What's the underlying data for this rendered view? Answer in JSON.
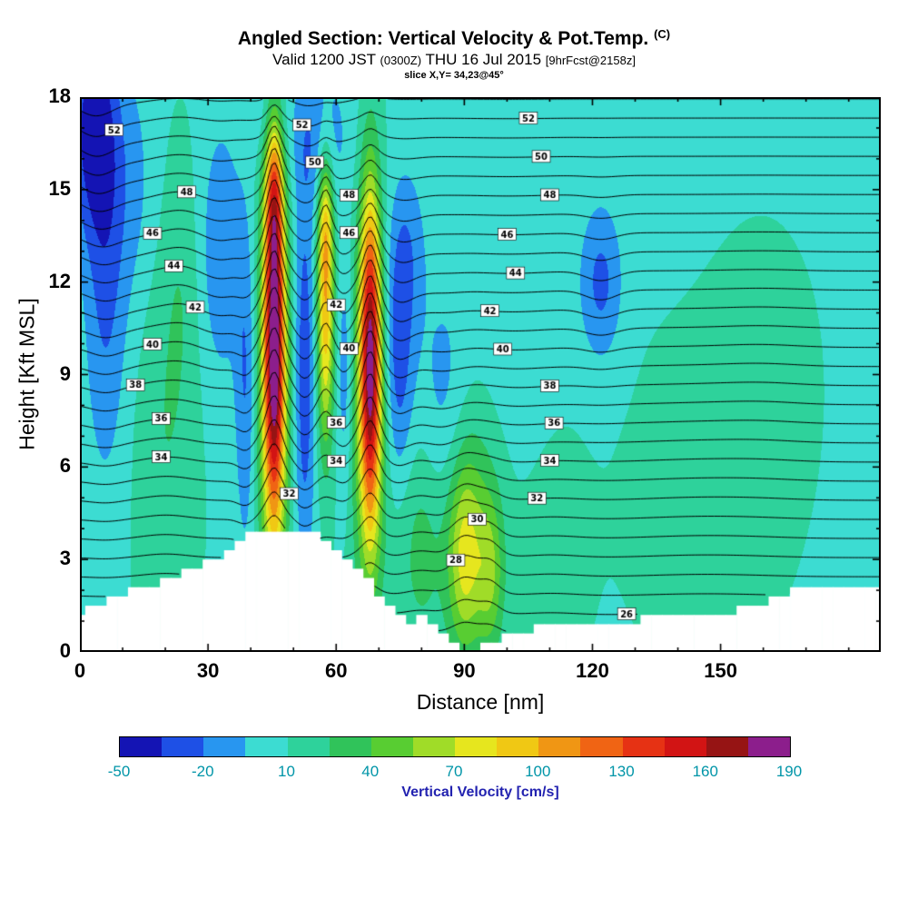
{
  "header": {
    "title": "Angled Section: Vertical Velocity & Pot.Temp.",
    "title_sup": "(C)",
    "valid_a": "Valid 1200 JST",
    "valid_b": "(0300Z)",
    "valid_c": "THU 16 Jul 2015",
    "valid_d": "[9hrFcst@2158z]",
    "slice": "slice X,Y= 34,23@45°"
  },
  "chart_data": {
    "type": "heatmap",
    "title": "Angled Section: Vertical Velocity & Pot.Temp. (C)",
    "xlabel": "Distance [nm]",
    "ylabel": "Height [Kft MSL]",
    "xlim": [
      0,
      187.5
    ],
    "ylim": [
      0,
      18
    ],
    "x_major_ticks": [
      0,
      30,
      60,
      90,
      120,
      150
    ],
    "x_minor_step": 10,
    "y_major_ticks": [
      0,
      3,
      6,
      9,
      12,
      15,
      18
    ],
    "y_minor_step": 1,
    "grid": false,
    "colorbar": {
      "label": "Vertical Velocity [cm/s]",
      "tick_labels": [
        -50,
        -20,
        10,
        40,
        70,
        100,
        130,
        160,
        190
      ],
      "min": -50,
      "step": 15,
      "colors": [
        "#1414b4",
        "#1e50e6",
        "#2896f0",
        "#3cdcd2",
        "#2ed29b",
        "#30c35a",
        "#58cd32",
        "#a0dc28",
        "#e6e61e",
        "#f0c814",
        "#f09614",
        "#f06414",
        "#e63214",
        "#d21414",
        "#961414",
        "#8c1e8c"
      ]
    },
    "field": {
      "units": "cm/s",
      "background": 8,
      "blobs": [
        {
          "x": 3,
          "y": 17,
          "sx": 4,
          "sy": 2.5,
          "amp": -48
        },
        {
          "x": 6,
          "y": 12,
          "sx": 3.5,
          "sy": 4.5,
          "amp": -30
        },
        {
          "x": 13,
          "y": 15,
          "sx": 4,
          "sy": 3,
          "amp": -16
        },
        {
          "x": 20,
          "y": 7,
          "sx": 5,
          "sy": 5,
          "amp": 16
        },
        {
          "x": 24,
          "y": 12,
          "sx": 3,
          "sy": 3,
          "amp": 10
        },
        {
          "x": 33,
          "y": 13,
          "sx": 3.5,
          "sy": 3,
          "amp": -26
        },
        {
          "x": 39,
          "y": 8.5,
          "sx": 1.8,
          "sy": 4,
          "amp": -34
        },
        {
          "x": 45.5,
          "y": 10,
          "sx": 1.7,
          "sy": 4.2,
          "amp": 160
        },
        {
          "x": 45.5,
          "y": 14.8,
          "sx": 1.4,
          "sy": 1.6,
          "amp": 55
        },
        {
          "x": 45,
          "y": 8.5,
          "sx": 3.5,
          "sy": 5,
          "amp": 38
        },
        {
          "x": 52.5,
          "y": 9,
          "sx": 1.8,
          "sy": 4.5,
          "amp": -42
        },
        {
          "x": 57.5,
          "y": 11,
          "sx": 1.4,
          "sy": 3,
          "amp": 85
        },
        {
          "x": 57.5,
          "y": 14,
          "sx": 1.2,
          "sy": 1.5,
          "amp": 40
        },
        {
          "x": 62,
          "y": 9,
          "sx": 1.4,
          "sy": 3,
          "amp": -28
        },
        {
          "x": 68,
          "y": 9.5,
          "sx": 1.7,
          "sy": 3.8,
          "amp": 150
        },
        {
          "x": 67.5,
          "y": 7.5,
          "sx": 3.5,
          "sy": 4.5,
          "amp": 36
        },
        {
          "x": 74.5,
          "y": 9.5,
          "sx": 2.5,
          "sy": 3,
          "amp": -38
        },
        {
          "x": 77,
          "y": 13,
          "sx": 3,
          "sy": 2,
          "amp": -20
        },
        {
          "x": 56,
          "y": 16.8,
          "sx": 5,
          "sy": 1.8,
          "amp": -24
        },
        {
          "x": 44,
          "y": 17.5,
          "sx": 3,
          "sy": 1.2,
          "amp": -15
        },
        {
          "x": 85,
          "y": 8,
          "sx": 4,
          "sy": 3,
          "amp": -18
        },
        {
          "x": 80,
          "y": 3.5,
          "sx": 4,
          "sy": 2.5,
          "amp": 24
        },
        {
          "x": 90,
          "y": 3,
          "sx": 2.8,
          "sy": 2.2,
          "amp": 58
        },
        {
          "x": 96,
          "y": 2.5,
          "sx": 2.2,
          "sy": 1.8,
          "amp": 40
        },
        {
          "x": 93,
          "y": 5,
          "sx": 5,
          "sy": 3,
          "amp": 22
        },
        {
          "x": 110,
          "y": 3.5,
          "sx": 6,
          "sy": 3,
          "amp": 10
        },
        {
          "x": 100,
          "y": 10,
          "sx": 8,
          "sy": 4,
          "amp": -10
        },
        {
          "x": 122,
          "y": 12,
          "sx": 3.5,
          "sy": 1.8,
          "amp": -32
        },
        {
          "x": 146,
          "y": 5,
          "sx": 12,
          "sy": 3.5,
          "amp": 10
        },
        {
          "x": 160,
          "y": 9,
          "sx": 8,
          "sy": 3,
          "amp": 8
        }
      ]
    },
    "terrain_profile": {
      "x_step": 2.5,
      "quantize": 0.3,
      "heights": [
        1.3,
        1.4,
        1.55,
        1.7,
        1.85,
        1.95,
        2.05,
        2.15,
        2.3,
        2.45,
        2.6,
        2.75,
        2.9,
        3.1,
        3.3,
        3.55,
        3.8,
        3.95,
        4.0,
        4.0,
        4.0,
        3.95,
        3.9,
        3.7,
        3.4,
        3.05,
        2.7,
        2.3,
        1.9,
        1.5,
        1.2,
        1.0,
        1.15,
        0.9,
        0.45,
        0.15,
        0.05,
        0.1,
        0.2,
        0.3,
        0.45,
        0.6,
        0.7,
        0.8,
        0.85,
        0.9,
        0.9,
        0.9,
        0.9,
        0.95,
        0.95,
        1.0,
        1.0,
        1.05,
        1.05,
        1.1,
        1.1,
        1.15,
        1.15,
        1.2,
        1.25,
        1.3,
        1.4,
        1.5,
        1.6,
        1.75,
        1.85,
        1.95,
        2.0,
        2.05,
        2.1,
        2.1,
        2.15,
        2.15,
        2.2,
        2.2
      ]
    },
    "isentropes": {
      "units": "C",
      "min_theta": 25,
      "max_theta": 53,
      "step": 1,
      "base_height_at_min": 0.58,
      "height_per_degree": 0.62,
      "displacement_per_cms": 0.01,
      "labels": [
        {
          "theta": 26,
          "x": [
            128
          ]
        },
        {
          "theta": 28,
          "x": [
            88
          ]
        },
        {
          "theta": 30,
          "x": [
            93
          ]
        },
        {
          "theta": 32,
          "x": [
            49,
            107
          ]
        },
        {
          "theta": 34,
          "x": [
            19,
            60,
            110
          ]
        },
        {
          "theta": 36,
          "x": [
            19,
            60,
            111
          ]
        },
        {
          "theta": 38,
          "x": [
            13,
            110
          ]
        },
        {
          "theta": 40,
          "x": [
            17,
            63,
            99
          ]
        },
        {
          "theta": 42,
          "x": [
            27,
            60,
            96
          ]
        },
        {
          "theta": 44,
          "x": [
            22,
            102
          ]
        },
        {
          "theta": 46,
          "x": [
            17,
            63,
            100
          ]
        },
        {
          "theta": 48,
          "x": [
            25,
            63,
            110
          ]
        },
        {
          "theta": 50,
          "x": [
            55,
            108
          ]
        },
        {
          "theta": 52,
          "x": [
            8,
            52,
            105
          ]
        }
      ]
    }
  }
}
